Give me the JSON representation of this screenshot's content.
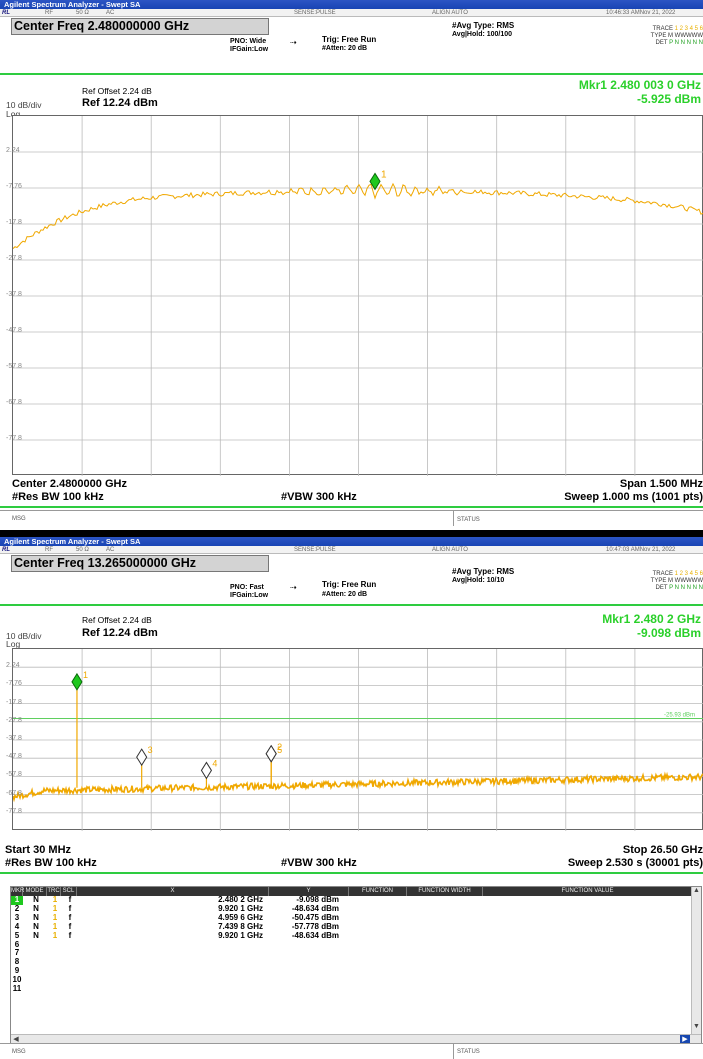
{
  "screen1": {
    "app_title": "Agilent Spectrum Analyzer - Swept SA",
    "strip": {
      "xmode": "RL",
      "rf": "RF",
      "impedance": "50 Ω",
      "coupling": "AC",
      "sense": "SENSE:PULSE",
      "align": "ALIGN AUTO",
      "time": "10:46:33 AMNov 21, 2022"
    },
    "center_freq_label": "Center Freq 2.480000000 GHz",
    "pno": "PNO: Wide",
    "ifgain": "IFGain:Low",
    "trig": "Trig: Free Run",
    "atten": "#Atten: 20 dB",
    "avg_type": "#Avg Type: RMS",
    "avg_hold": "Avg|Hold: 100/100",
    "trace_line": "TRACE",
    "type_line": "TYPE",
    "det_line": "DET",
    "trace_nums": "1 2 3 4 5 6",
    "type_val": "M WWWWW",
    "det_val": "P N N N N N",
    "ref_offset": "Ref Offset 2.24 dB",
    "scale": "10 dB/div",
    "scale_mode": "Log",
    "ref_level": "Ref 12.24 dBm",
    "marker_freq": "Mkr1 2.480 003 0 GHz",
    "marker_amp": "-5.925 dBm",
    "y_ticks": [
      "2.24",
      "-7.76",
      "-17.8",
      "-27.8",
      "-37.8",
      "-47.8",
      "-57.8",
      "-67.8",
      "-77.8"
    ],
    "marker_label": "1",
    "bottom_left1": "Center 2.4800000 GHz",
    "bottom_left2": "#Res BW 100 kHz",
    "bottom_mid": "#VBW 300 kHz",
    "bottom_right1": "Span 1.500 MHz",
    "bottom_right2": "Sweep  1.000 ms (1001 pts)",
    "msg": "MSG",
    "status": "STATUS"
  },
  "screen2": {
    "app_title": "Agilent Spectrum Analyzer - Swept SA",
    "strip": {
      "xmode": "RL",
      "rf": "RF",
      "impedance": "50 Ω",
      "coupling": "AC",
      "sense": "SENSE:PULSE",
      "align": "ALIGN AUTO",
      "time": "10:47:03 AMNov 21, 2022"
    },
    "center_freq_label": "Center Freq 13.265000000 GHz",
    "pno": "PNO: Fast",
    "ifgain": "IFGain:Low",
    "trig": "Trig: Free Run",
    "atten": "#Atten: 20 dB",
    "avg_type": "#Avg Type: RMS",
    "avg_hold": "Avg|Hold: 10/10",
    "trace_line": "TRACE",
    "type_line": "TYPE",
    "det_line": "DET",
    "trace_nums": "1 2 3 4 5 6",
    "type_val": "M WWWWW",
    "det_val": "P N N N N N",
    "ref_offset": "Ref Offset 2.24 dB",
    "scale": "10 dB/div",
    "scale_mode": "Log",
    "ref_level": "Ref 12.24 dBm",
    "marker_freq": "Mkr1 2.480 2 GHz",
    "marker_amp": "-9.098 dBm",
    "y_ticks": [
      "2.24",
      "-7.76",
      "-17.8",
      "-27.8",
      "-37.8",
      "-47.8",
      "-57.8",
      "-67.8",
      "-77.8"
    ],
    "limit_label": "-25.93 dBm",
    "marker_labels": [
      "1",
      "3",
      "4",
      "2",
      "5"
    ],
    "bottom_left1": "Start 30 MHz",
    "bottom_left2": "#Res BW 100 kHz",
    "bottom_mid": "#VBW 300 kHz",
    "bottom_right1": "Stop 26.50 GHz",
    "bottom_right2": "Sweep  2.530 s (30001 pts)",
    "table_headers": [
      "MKR",
      "MODE",
      "TRC",
      "SCL",
      "X",
      "Y",
      "FUNCTION",
      "FUNCTION WIDTH",
      "FUNCTION VALUE"
    ],
    "table_rows": [
      {
        "mkr": "1",
        "mode": "N",
        "trc": "1",
        "scl": "f",
        "x": "2.480 2 GHz",
        "y": "-9.098 dBm"
      },
      {
        "mkr": "2",
        "mode": "N",
        "trc": "1",
        "scl": "f",
        "x": "9.920 1 GHz",
        "y": "-48.634 dBm"
      },
      {
        "mkr": "3",
        "mode": "N",
        "trc": "1",
        "scl": "f",
        "x": "4.959 6 GHz",
        "y": "-50.475 dBm"
      },
      {
        "mkr": "4",
        "mode": "N",
        "trc": "1",
        "scl": "f",
        "x": "7.439 8 GHz",
        "y": "-57.778 dBm"
      },
      {
        "mkr": "5",
        "mode": "N",
        "trc": "1",
        "scl": "f",
        "x": "9.920 1 GHz",
        "y": "-48.634 dBm"
      },
      {
        "mkr": "6",
        "mode": "",
        "trc": "",
        "scl": "",
        "x": "",
        "y": ""
      },
      {
        "mkr": "7",
        "mode": "",
        "trc": "",
        "scl": "",
        "x": "",
        "y": ""
      },
      {
        "mkr": "8",
        "mode": "",
        "trc": "",
        "scl": "",
        "x": "",
        "y": ""
      },
      {
        "mkr": "9",
        "mode": "",
        "trc": "",
        "scl": "",
        "x": "",
        "y": ""
      },
      {
        "mkr": "10",
        "mode": "",
        "trc": "",
        "scl": "",
        "x": "",
        "y": ""
      },
      {
        "mkr": "11",
        "mode": "",
        "trc": "",
        "scl": "",
        "x": "",
        "y": ""
      }
    ],
    "msg": "MSG",
    "status": "STATUS"
  },
  "colors": {
    "trace": "#f0a800",
    "marker_active": "#1ec81e",
    "limit_line": "#5fcf5f",
    "green_sep": "#2ecc40"
  }
}
